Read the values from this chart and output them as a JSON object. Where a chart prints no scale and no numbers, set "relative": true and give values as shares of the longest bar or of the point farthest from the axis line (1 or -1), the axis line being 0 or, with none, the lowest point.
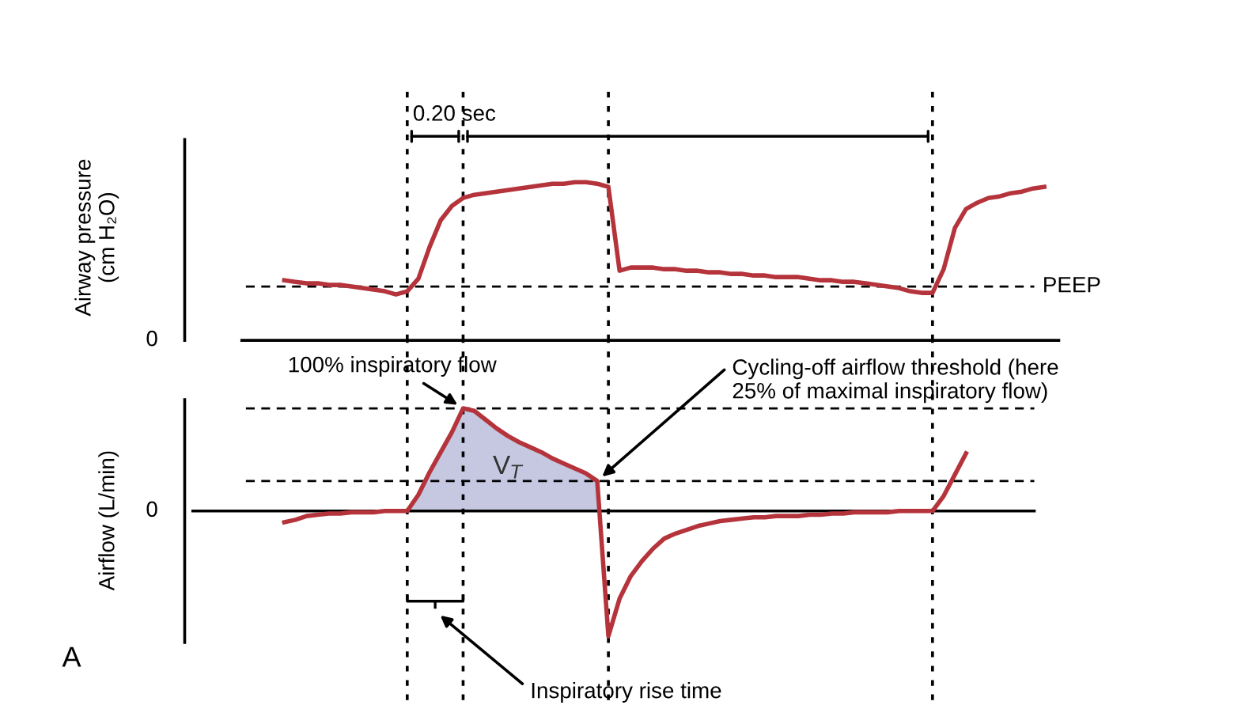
{
  "chart_data": [
    {
      "type": "line",
      "relative": true,
      "ylabel": "Airway pressure\n(cm H₂O)",
      "categories": [
        null,
        null,
        null,
        null,
        null,
        null,
        null,
        null,
        null,
        null,
        null,
        null,
        null,
        null,
        null,
        null,
        null,
        null,
        null,
        null,
        null,
        null,
        null,
        null,
        null,
        null,
        null,
        null,
        null,
        null,
        null,
        null,
        null,
        null,
        null,
        null,
        null,
        null,
        null,
        null,
        null,
        null,
        null,
        null,
        null,
        null,
        null,
        null,
        null,
        null,
        null,
        null,
        null,
        null,
        null,
        null,
        null,
        null,
        null,
        null,
        null,
        null,
        null,
        null,
        null,
        null,
        null,
        null,
        null
      ],
      "series": [
        {
          "color": "#b5343c",
          "values": [
            0.38,
            0.37,
            0.36,
            0.36,
            0.35,
            0.35,
            0.34,
            0.33,
            0.32,
            0.31,
            0.29,
            0.31,
            0.39,
            0.59,
            0.76,
            0.85,
            0.9,
            0.92,
            0.93,
            0.94,
            0.95,
            0.96,
            0.97,
            0.98,
            0.99,
            0.99,
            1.0,
            1.0,
            0.99,
            0.97,
            0.44,
            0.46,
            0.46,
            0.46,
            0.45,
            0.45,
            0.44,
            0.44,
            0.43,
            0.43,
            0.42,
            0.42,
            0.41,
            0.41,
            0.4,
            0.4,
            0.4,
            0.39,
            0.38,
            0.38,
            0.37,
            0.37,
            0.36,
            0.35,
            0.34,
            0.33,
            0.31,
            0.3,
            0.3,
            0.45,
            0.71,
            0.83,
            0.87,
            0.9,
            0.91,
            0.93,
            0.94,
            0.96,
            0.97
          ]
        }
      ],
      "ref_lines": [
        {
          "axis": "y",
          "value": 0.34,
          "label": "PEEP",
          "line_style": "dashed"
        }
      ],
      "grid": "x",
      "annotations": [
        "0.20 sec",
        "0"
      ]
    },
    {
      "type": "line",
      "relative": true,
      "ylabel": "Airflow (L/min)",
      "categories": [
        null,
        null,
        null,
        null,
        null,
        null,
        null,
        null,
        null,
        null,
        null,
        null,
        null,
        null,
        null,
        null,
        null,
        null,
        null,
        null,
        null,
        null,
        null,
        null,
        null,
        null,
        null,
        null,
        null,
        null,
        null,
        null,
        null,
        null,
        null,
        null,
        null,
        null,
        null,
        null,
        null,
        null,
        null,
        null,
        null,
        null,
        null,
        null,
        null,
        null,
        null,
        null,
        null,
        null,
        null,
        null,
        null,
        null,
        null,
        null,
        null,
        null,
        null,
        null,
        null,
        null,
        null,
        null,
        null
      ],
      "series": [
        {
          "type": "area",
          "name": "V$_{T}$",
          "color": "#c5c8e0",
          "values": [
            null,
            null,
            null,
            null,
            null,
            null,
            null,
            null,
            null,
            null,
            null,
            0,
            0.13,
            0.31,
            0.47,
            0.63,
            0.82,
            0.8,
            0.73,
            0.66,
            0.6,
            0.55,
            0.51,
            0.47,
            0.42,
            0.38,
            0.34,
            0.3,
            0.24,
            null,
            null,
            null,
            null,
            null,
            null,
            null,
            null,
            null,
            null,
            null,
            null,
            null,
            null,
            null,
            null,
            null,
            null,
            null,
            null,
            null,
            null,
            null,
            null,
            null,
            null,
            null,
            null,
            null,
            null,
            null,
            null,
            null,
            null,
            null,
            null,
            null,
            null,
            null,
            null
          ]
        },
        {
          "color": "#b5343c",
          "values": [
            -0.09,
            -0.07,
            -0.04,
            -0.03,
            -0.02,
            -0.02,
            -0.01,
            -0.01,
            -0.01,
            0,
            0,
            0,
            0.13,
            0.31,
            0.47,
            0.63,
            0.82,
            0.8,
            0.73,
            0.66,
            0.6,
            0.55,
            0.51,
            0.47,
            0.42,
            0.38,
            0.34,
            0.3,
            0.24,
            -1.0,
            -0.7,
            -0.52,
            -0.4,
            -0.3,
            -0.22,
            -0.18,
            -0.15,
            -0.12,
            -0.1,
            -0.08,
            -0.07,
            -0.06,
            -0.05,
            -0.05,
            -0.04,
            -0.04,
            -0.04,
            -0.03,
            -0.03,
            -0.02,
            -0.02,
            -0.01,
            -0.01,
            -0.01,
            -0.01,
            0,
            0,
            0,
            0,
            0.12,
            0.29,
            0.46,
            null,
            null,
            null,
            null,
            null,
            null,
            null
          ]
        }
      ],
      "ref_lines": [
        {
          "axis": "y",
          "value": 0.82,
          "label": null,
          "line_style": "dashed"
        },
        {
          "axis": "y",
          "value": 0.24,
          "label": null,
          "line_style": "dashed"
        }
      ],
      "grid": "x",
      "annotations": [
        "100% inspiratory flow",
        "Cycling-off airflow threshold (here\n25% of maximal inspiratory flow)",
        "Inspiratory rise time",
        "0",
        "A"
      ]
    }
  ]
}
